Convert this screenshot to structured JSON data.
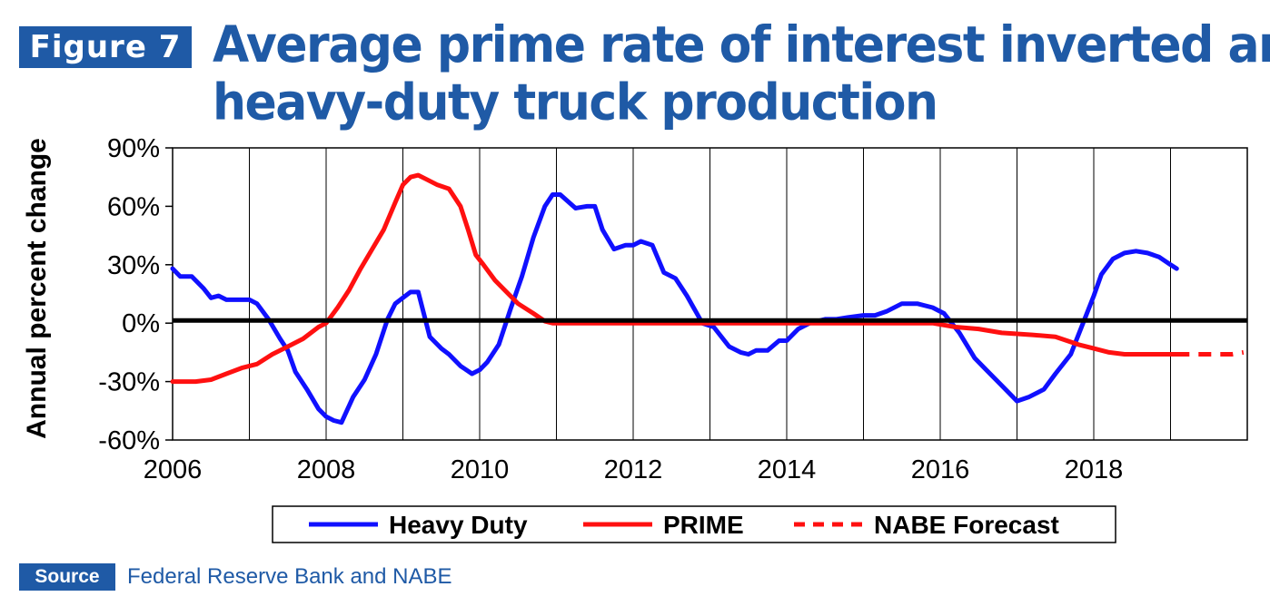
{
  "figure_label": "Figure 7",
  "title_line1": "Average prime rate of interest inverted and",
  "title_line2": "heavy-duty truck production",
  "source_label": "Source",
  "source_text": "Federal Reserve Bank and NABE",
  "chart_data": {
    "type": "line",
    "ylabel": "Annual percent change",
    "xlabel": "",
    "xlim": [
      2006,
      2020
    ],
    "ylim": [
      -60,
      90
    ],
    "yticks": [
      -60,
      -30,
      0,
      30,
      60,
      90
    ],
    "ytick_labels": [
      "-60%",
      "-30%",
      "0%",
      "30%",
      "60%",
      "90%"
    ],
    "xticks": [
      2006,
      2008,
      2010,
      2012,
      2014,
      2016,
      2018
    ],
    "xtick_labels": [
      "2006",
      "2008",
      "2010",
      "2012",
      "2014",
      "2016",
      "2018"
    ],
    "grid": "vertical",
    "legend": "bottom",
    "zero_line": true,
    "colors": {
      "heavy_duty": "#1010ff",
      "prime": "#ff1010",
      "forecast": "#ff1010",
      "axis": "#000000",
      "title": "#1f5aa6"
    },
    "series": [
      {
        "name": "Heavy Duty",
        "style": "solid",
        "color": "#1010ff",
        "x": [
          2006.0,
          2006.1,
          2006.25,
          2006.4,
          2006.5,
          2006.6,
          2006.7,
          2006.9,
          2007.0,
          2007.1,
          2007.25,
          2007.4,
          2007.5,
          2007.6,
          2007.75,
          2007.9,
          2008.0,
          2008.1,
          2008.2,
          2008.35,
          2008.5,
          2008.65,
          2008.8,
          2008.9,
          2009.0,
          2009.1,
          2009.2,
          2009.35,
          2009.5,
          2009.6,
          2009.75,
          2009.9,
          2010.0,
          2010.1,
          2010.25,
          2010.4,
          2010.55,
          2010.7,
          2010.85,
          2010.95,
          2011.05,
          2011.25,
          2011.4,
          2011.5,
          2011.6,
          2011.75,
          2011.9,
          2012.0,
          2012.1,
          2012.25,
          2012.4,
          2012.55,
          2012.7,
          2012.9,
          2013.05,
          2013.25,
          2013.4,
          2013.5,
          2013.6,
          2013.75,
          2013.9,
          2014.0,
          2014.15,
          2014.3,
          2014.5,
          2014.65,
          2014.8,
          2015.0,
          2015.15,
          2015.3,
          2015.5,
          2015.7,
          2015.9,
          2016.05,
          2016.25,
          2016.45,
          2016.6,
          2016.8,
          2017.0,
          2017.15,
          2017.35,
          2017.5,
          2017.7,
          2017.9,
          2018.0,
          2018.1,
          2018.25,
          2018.4,
          2018.55,
          2018.7,
          2018.85,
          2019.0,
          2019.08
        ],
        "y": [
          28,
          24,
          24,
          18,
          13,
          14,
          12,
          12,
          12,
          10,
          2,
          -8,
          -14,
          -25,
          -34,
          -44,
          -48,
          -50,
          -51,
          -38,
          -29,
          -16,
          2,
          10,
          13,
          16,
          16,
          -7,
          -13,
          -16,
          -22,
          -26,
          -24,
          -20,
          -11,
          7,
          24,
          44,
          60,
          66,
          66,
          59,
          60,
          60,
          48,
          38,
          40,
          40,
          42,
          40,
          26,
          23,
          14,
          0,
          -2,
          -12,
          -15,
          -16,
          -14,
          -14,
          -9,
          -9,
          -3,
          0,
          2,
          2,
          3,
          4,
          4,
          6,
          10,
          10,
          8,
          5,
          -5,
          -18,
          -24,
          -32,
          -40,
          -38,
          -34,
          -26,
          -16,
          4,
          14,
          25,
          33,
          36,
          37,
          36,
          34,
          30,
          28
        ]
      },
      {
        "name": "PRIME",
        "style": "solid",
        "color": "#ff1010",
        "x": [
          2006.0,
          2006.3,
          2006.5,
          2006.7,
          2006.9,
          2007.1,
          2007.3,
          2007.5,
          2007.7,
          2007.9,
          2008.0,
          2008.15,
          2008.3,
          2008.45,
          2008.6,
          2008.75,
          2008.9,
          2009.0,
          2009.1,
          2009.2,
          2009.3,
          2009.45,
          2009.6,
          2009.75,
          2009.85,
          2009.95,
          2010.05,
          2010.2,
          2010.35,
          2010.5,
          2010.7,
          2010.85,
          2010.95,
          2011.2,
          2012.0,
          2013.0,
          2014.0,
          2015.0,
          2015.9,
          2016.2,
          2016.5,
          2016.8,
          2017.2,
          2017.5,
          2017.8,
          2018.0,
          2018.2,
          2018.4,
          2018.6,
          2018.8,
          2019.0,
          2019.08
        ],
        "y": [
          -30,
          -30,
          -29,
          -26,
          -23,
          -21,
          -16,
          -12,
          -8,
          -2,
          0,
          8,
          17,
          28,
          38,
          48,
          62,
          71,
          75,
          76,
          74,
          71,
          69,
          60,
          48,
          35,
          30,
          22,
          16,
          10,
          5,
          1,
          0,
          0,
          0,
          0,
          0,
          0,
          0,
          -2,
          -3,
          -5,
          -6,
          -7,
          -11,
          -13,
          -15,
          -16,
          -16,
          -16,
          -16,
          -16
        ]
      },
      {
        "name": "NABE Forecast",
        "style": "dashed",
        "color": "#ff1010",
        "x": [
          2019.08,
          2019.5,
          2019.8,
          2019.95
        ],
        "y": [
          -16,
          -16,
          -16,
          -15
        ]
      }
    ]
  }
}
